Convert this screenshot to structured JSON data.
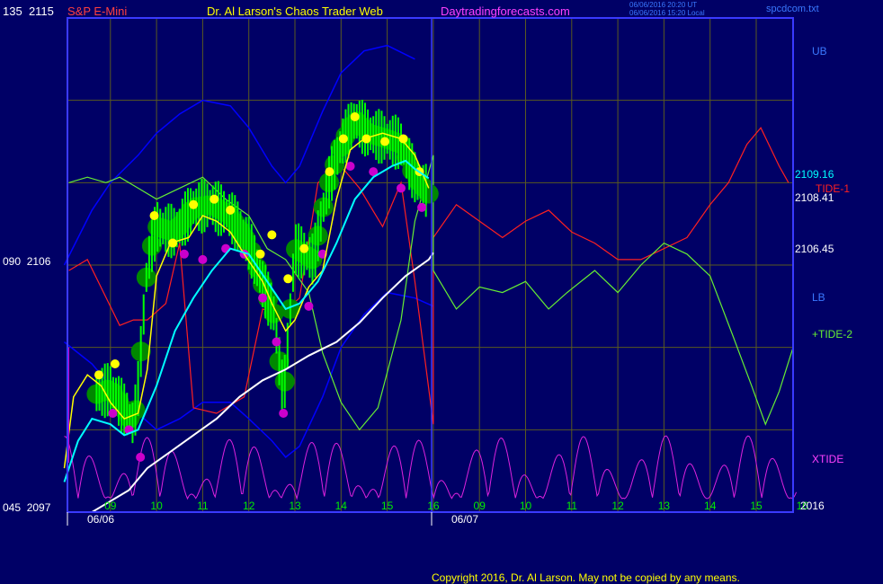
{
  "header": {
    "left_label": "135",
    "left_price": "2115",
    "symbol": "S&P E-Mini",
    "title": "Dr. Al Larson's Chaos Trader Web",
    "site": "Daytradingforecasts.com",
    "ut_time": "06/06/2016 20:20 UT",
    "local_time": "06/06/2016 15:20 Local",
    "file": "spcdcom.txt"
  },
  "y_labels": [
    {
      "label": "135",
      "price": "2115"
    },
    {
      "label": "090",
      "price": "2106"
    },
    {
      "label": "045",
      "price": "2097"
    }
  ],
  "right_labels": {
    "ub": "UB",
    "v1": "2109.16",
    "tide1": "TIDE-1",
    "v2": "2108.41",
    "v3": "2106.45",
    "lb": "LB",
    "tide2": "+TIDE-2",
    "xtide": "XTIDE",
    "year": "2016"
  },
  "footer": "Copyright 2016, Dr. Al Larson. May not be copied by any means.",
  "colors": {
    "background": "#000066",
    "grid": "#5a5a20",
    "border": "#3a3aff",
    "candles": "#00ff00",
    "bubbles": "#008800",
    "yellow_dots": "#ffff00",
    "magenta_dots": "#cc00cc",
    "yellow_line": "#ffff00",
    "cyan_line": "#00ffff",
    "white_line": "#ffffff",
    "blue_band": "#0000ff",
    "red_line": "#ff2020",
    "green_line": "#66ee33",
    "xtide": "#dd22dd"
  },
  "chart_data": {
    "type": "line",
    "title": "Dr. Al Larson's Chaos Trader Web",
    "ylim": [
      2097,
      2115
    ],
    "y_ticks": [
      "2115",
      "2106",
      "2097"
    ],
    "x_ticks_day1": [
      "09",
      "10",
      "11",
      "12",
      "13",
      "14",
      "15",
      "16"
    ],
    "x_ticks_day2": [
      "09",
      "10",
      "11",
      "12",
      "13",
      "14",
      "15",
      "16"
    ],
    "dates": [
      "06/06",
      "06/07"
    ],
    "price_path": [
      {
        "t": 8.7,
        "p": 2101.3
      },
      {
        "t": 9.0,
        "p": 2101.5
      },
      {
        "t": 9.2,
        "p": 2101.0
      },
      {
        "t": 9.5,
        "p": 2100.2
      },
      {
        "t": 9.6,
        "p": 2101.5
      },
      {
        "t": 9.8,
        "p": 2106.0
      },
      {
        "t": 10.0,
        "p": 2107.4
      },
      {
        "t": 10.4,
        "p": 2107.2
      },
      {
        "t": 10.8,
        "p": 2108.1
      },
      {
        "t": 11.2,
        "p": 2108.2
      },
      {
        "t": 11.6,
        "p": 2107.8
      },
      {
        "t": 12.0,
        "p": 2106.8
      },
      {
        "t": 12.3,
        "p": 2105.3
      },
      {
        "t": 12.55,
        "p": 2104.2
      },
      {
        "t": 12.75,
        "p": 2101.1
      },
      {
        "t": 13.0,
        "p": 2106.6
      },
      {
        "t": 13.4,
        "p": 2106.2
      },
      {
        "t": 13.7,
        "p": 2108.8
      },
      {
        "t": 14.0,
        "p": 2110.4
      },
      {
        "t": 14.3,
        "p": 2111.3
      },
      {
        "t": 14.6,
        "p": 2110.8
      },
      {
        "t": 15.0,
        "p": 2110.6
      },
      {
        "t": 15.3,
        "p": 2110.4
      },
      {
        "t": 15.6,
        "p": 2109.2
      },
      {
        "t": 15.9,
        "p": 2108.6
      }
    ],
    "series": [
      {
        "name": "TIDE-1",
        "color": "#ff2020",
        "points": [
          [
            8.1,
            2105.8
          ],
          [
            8.5,
            2106.2
          ],
          [
            9.2,
            2103.8
          ],
          [
            9.5,
            2104.0
          ],
          [
            9.8,
            2104.0
          ],
          [
            10.2,
            2104.6
          ],
          [
            10.5,
            2106.8
          ],
          [
            10.8,
            2100.8
          ],
          [
            11.3,
            2100.6
          ],
          [
            11.9,
            2101.2
          ],
          [
            12.3,
            2104.4
          ],
          [
            12.7,
            2104.2
          ],
          [
            13.1,
            2104.8
          ],
          [
            13.5,
            2109.0
          ],
          [
            14.0,
            2109.6
          ],
          [
            14.4,
            2108.8
          ],
          [
            14.9,
            2107.4
          ],
          [
            15.3,
            2109.0
          ],
          [
            15.6,
            2105.4
          ],
          [
            16.0,
            2100.2
          ],
          [
            16.0,
            2107.0
          ],
          [
            16.5,
            2108.2
          ],
          [
            17.0,
            2107.6
          ],
          [
            17.5,
            2107.0
          ],
          [
            18.0,
            2107.6
          ],
          [
            18.5,
            2108.0
          ],
          [
            19.0,
            2107.2
          ],
          [
            19.5,
            2106.8
          ],
          [
            20.0,
            2106.2
          ],
          [
            20.5,
            2106.2
          ],
          [
            21.0,
            2106.6
          ],
          [
            21.5,
            2107.0
          ],
          [
            22.0,
            2108.2
          ],
          [
            22.4,
            2109.0
          ],
          [
            22.8,
            2110.4
          ],
          [
            23.1,
            2111.0
          ],
          [
            23.5,
            2109.6
          ],
          [
            23.7,
            2109.0
          ]
        ]
      },
      {
        "name": "+TIDE-2",
        "color": "#66ee33",
        "points": [
          [
            8.1,
            2109.0
          ],
          [
            8.5,
            2109.2
          ],
          [
            8.9,
            2109.0
          ],
          [
            9.2,
            2109.2
          ],
          [
            9.6,
            2108.8
          ],
          [
            10.0,
            2108.4
          ],
          [
            10.5,
            2108.8
          ],
          [
            11.0,
            2109.2
          ],
          [
            11.5,
            2108.4
          ],
          [
            12.0,
            2107.8
          ],
          [
            12.4,
            2106.6
          ],
          [
            12.8,
            2106.2
          ],
          [
            13.3,
            2105.0
          ],
          [
            13.6,
            2102.8
          ],
          [
            14.0,
            2101.0
          ],
          [
            14.4,
            2100.0
          ],
          [
            14.8,
            2100.8
          ],
          [
            15.3,
            2104.0
          ],
          [
            15.6,
            2107.6
          ],
          [
            16.0,
            2110.0
          ],
          [
            16.0,
            2105.8
          ],
          [
            16.5,
            2104.4
          ],
          [
            17.0,
            2105.2
          ],
          [
            17.5,
            2105.0
          ],
          [
            18.0,
            2105.4
          ],
          [
            18.5,
            2104.4
          ],
          [
            18.9,
            2105.0
          ],
          [
            19.5,
            2105.8
          ],
          [
            20.0,
            2105.0
          ],
          [
            20.5,
            2106.0
          ],
          [
            21.0,
            2106.8
          ],
          [
            21.5,
            2106.4
          ],
          [
            22.0,
            2105.6
          ],
          [
            22.5,
            2103.4
          ],
          [
            22.9,
            2101.6
          ],
          [
            23.2,
            2100.2
          ],
          [
            23.5,
            2101.4
          ],
          [
            23.8,
            2103.0
          ]
        ]
      },
      {
        "name": "UB",
        "color": "#0000ff",
        "points": [
          [
            8.0,
            2106.0
          ],
          [
            8.6,
            2108.0
          ],
          [
            9.0,
            2109.0
          ],
          [
            9.6,
            2110.0
          ],
          [
            10.0,
            2110.8
          ],
          [
            10.5,
            2111.5
          ],
          [
            11.0,
            2112.0
          ],
          [
            11.6,
            2111.8
          ],
          [
            12.0,
            2111.0
          ],
          [
            12.5,
            2109.6
          ],
          [
            12.8,
            2109.0
          ],
          [
            13.1,
            2109.6
          ],
          [
            13.6,
            2111.6
          ],
          [
            14.0,
            2113.0
          ],
          [
            14.5,
            2113.8
          ],
          [
            15.0,
            2114.0
          ],
          [
            15.6,
            2113.5
          ]
        ]
      },
      {
        "name": "LB",
        "color": "#0000ff",
        "points": [
          [
            8.0,
            2103.2
          ],
          [
            8.6,
            2102.4
          ],
          [
            9.0,
            2101.6
          ],
          [
            9.6,
            2100.6
          ],
          [
            10.0,
            2100.0
          ],
          [
            10.5,
            2100.4
          ],
          [
            11.0,
            2101.0
          ],
          [
            11.6,
            2101.0
          ],
          [
            12.0,
            2100.4
          ],
          [
            12.5,
            2099.6
          ],
          [
            12.8,
            2099.0
          ],
          [
            13.1,
            2099.4
          ],
          [
            13.6,
            2101.2
          ],
          [
            14.0,
            2103.0
          ],
          [
            14.5,
            2104.2
          ],
          [
            15.0,
            2105.0
          ],
          [
            15.6,
            2104.8
          ],
          [
            16.0,
            2104.5
          ]
        ]
      },
      {
        "name": "Yellow MA",
        "color": "#ffff00",
        "points": [
          [
            8.0,
            2098.6
          ],
          [
            8.2,
            2101.2
          ],
          [
            8.5,
            2102.0
          ],
          [
            8.8,
            2101.6
          ],
          [
            9.0,
            2101.0
          ],
          [
            9.3,
            2100.4
          ],
          [
            9.6,
            2100.6
          ],
          [
            9.8,
            2102.2
          ],
          [
            10.0,
            2105.6
          ],
          [
            10.3,
            2106.8
          ],
          [
            10.7,
            2107.0
          ],
          [
            11.0,
            2107.8
          ],
          [
            11.3,
            2107.6
          ],
          [
            11.6,
            2107.2
          ],
          [
            11.9,
            2106.4
          ],
          [
            12.3,
            2105.4
          ],
          [
            12.5,
            2104.6
          ],
          [
            12.8,
            2103.6
          ],
          [
            13.0,
            2104.0
          ],
          [
            13.3,
            2105.2
          ],
          [
            13.6,
            2105.8
          ],
          [
            13.9,
            2108.4
          ],
          [
            14.2,
            2110.2
          ],
          [
            14.5,
            2110.6
          ],
          [
            14.9,
            2110.8
          ],
          [
            15.3,
            2110.6
          ],
          [
            15.6,
            2110.0
          ],
          [
            15.9,
            2108.8
          ]
        ]
      },
      {
        "name": "Cyan MA",
        "color": "#00ffff",
        "points": [
          [
            8.0,
            2098.1
          ],
          [
            8.3,
            2099.6
          ],
          [
            8.6,
            2100.4
          ],
          [
            9.0,
            2100.2
          ],
          [
            9.3,
            2099.8
          ],
          [
            9.6,
            2100.0
          ],
          [
            10.0,
            2101.6
          ],
          [
            10.4,
            2103.6
          ],
          [
            10.8,
            2104.8
          ],
          [
            11.2,
            2105.8
          ],
          [
            11.6,
            2106.6
          ],
          [
            12.0,
            2106.4
          ],
          [
            12.4,
            2105.4
          ],
          [
            12.8,
            2104.4
          ],
          [
            13.1,
            2104.6
          ],
          [
            13.5,
            2105.4
          ],
          [
            13.9,
            2106.8
          ],
          [
            14.3,
            2108.4
          ],
          [
            14.7,
            2109.2
          ],
          [
            15.1,
            2109.6
          ],
          [
            15.4,
            2109.8
          ],
          [
            15.6,
            2109.5
          ],
          [
            15.9,
            2109.16
          ]
        ]
      },
      {
        "name": "White MA",
        "color": "#ffffff",
        "points": [
          [
            8.6,
            2097.0
          ],
          [
            9.0,
            2097.4
          ],
          [
            9.4,
            2097.8
          ],
          [
            9.8,
            2098.6
          ],
          [
            10.3,
            2099.2
          ],
          [
            10.8,
            2099.8
          ],
          [
            11.3,
            2100.4
          ],
          [
            11.8,
            2101.2
          ],
          [
            12.3,
            2101.8
          ],
          [
            12.8,
            2102.2
          ],
          [
            13.3,
            2102.7
          ],
          [
            13.9,
            2103.2
          ],
          [
            14.4,
            2103.9
          ],
          [
            14.9,
            2104.8
          ],
          [
            15.4,
            2105.6
          ],
          [
            15.9,
            2106.2
          ],
          [
            16.0,
            2106.45
          ]
        ]
      }
    ],
    "markers": {
      "yellow_dots": [
        [
          8.75,
          2102.0
        ],
        [
          9.1,
          2102.4
        ],
        [
          9.95,
          2107.8
        ],
        [
          10.35,
          2106.8
        ],
        [
          10.8,
          2108.2
        ],
        [
          11.25,
          2108.4
        ],
        [
          11.6,
          2108.0
        ],
        [
          12.25,
          2106.4
        ],
        [
          12.5,
          2107.1
        ],
        [
          12.85,
          2105.5
        ],
        [
          13.2,
          2106.6
        ],
        [
          13.75,
          2109.4
        ],
        [
          14.05,
          2110.6
        ],
        [
          14.3,
          2111.4
        ],
        [
          14.55,
          2110.6
        ],
        [
          14.95,
          2110.5
        ],
        [
          15.35,
          2110.6
        ],
        [
          15.7,
          2109.4
        ]
      ],
      "magenta_dots": [
        [
          9.05,
          2100.6
        ],
        [
          9.4,
          2100.0
        ],
        [
          9.65,
          2099.0
        ],
        [
          10.6,
          2106.4
        ],
        [
          11.0,
          2106.2
        ],
        [
          11.5,
          2106.6
        ],
        [
          11.9,
          2106.4
        ],
        [
          12.3,
          2104.8
        ],
        [
          12.6,
          2103.2
        ],
        [
          12.75,
          2100.6
        ],
        [
          13.3,
          2104.5
        ],
        [
          13.6,
          2106.4
        ],
        [
          14.2,
          2109.6
        ],
        [
          14.7,
          2109.4
        ],
        [
          15.3,
          2108.8
        ],
        [
          15.75,
          2108.1
        ]
      ]
    },
    "right_axis_values": [
      "2109.16",
      "2108.41",
      "2106.45"
    ]
  }
}
